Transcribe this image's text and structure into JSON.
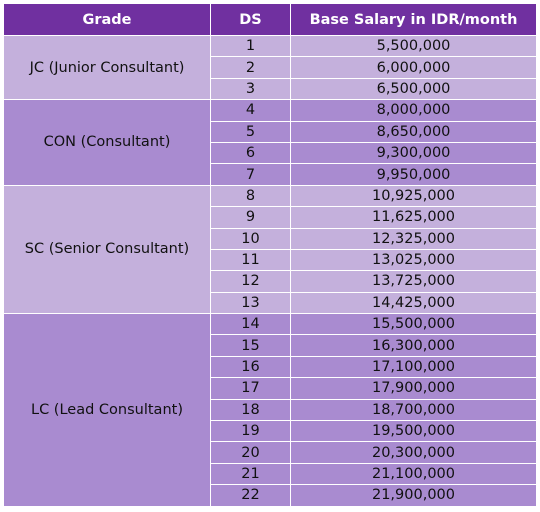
{
  "table": {
    "headers": [
      "Grade",
      "DS",
      "Base Salary in IDR/month"
    ],
    "groups": [
      {
        "grade": "JC (Junior Consultant)",
        "shade": "light",
        "rows": [
          {
            "ds": "1",
            "salary": "5,500,000"
          },
          {
            "ds": "2",
            "salary": "6,000,000"
          },
          {
            "ds": "3",
            "salary": "6,500,000"
          }
        ]
      },
      {
        "grade": "CON (Consultant)",
        "shade": "dark",
        "rows": [
          {
            "ds": "4",
            "salary": "8,000,000"
          },
          {
            "ds": "5",
            "salary": "8,650,000"
          },
          {
            "ds": "6",
            "salary": "9,300,000"
          },
          {
            "ds": "7",
            "salary": "9,950,000"
          }
        ]
      },
      {
        "grade": "SC (Senior Consultant)",
        "shade": "light",
        "rows": [
          {
            "ds": "8",
            "salary": "10,925,000"
          },
          {
            "ds": "9",
            "salary": "11,625,000"
          },
          {
            "ds": "10",
            "salary": "12,325,000"
          },
          {
            "ds": "11",
            "salary": "13,025,000"
          },
          {
            "ds": "12",
            "salary": "13,725,000"
          },
          {
            "ds": "13",
            "salary": "14,425,000"
          }
        ]
      },
      {
        "grade": "LC (Lead Consultant)",
        "shade": "dark",
        "rows": [
          {
            "ds": "14",
            "salary": "15,500,000"
          },
          {
            "ds": "15",
            "salary": "16,300,000"
          },
          {
            "ds": "16",
            "salary": "17,100,000"
          },
          {
            "ds": "17",
            "salary": "17,900,000"
          },
          {
            "ds": "18",
            "salary": "18,700,000"
          },
          {
            "ds": "19",
            "salary": "19,500,000"
          },
          {
            "ds": "20",
            "salary": "20,300,000"
          },
          {
            "ds": "21",
            "salary": "21,100,000"
          },
          {
            "ds": "22",
            "salary": "21,900,000"
          }
        ]
      }
    ]
  },
  "colors": {
    "header_bg": "#7030a0",
    "light_row": "#c4b0dc",
    "dark_row": "#a98bd0"
  }
}
